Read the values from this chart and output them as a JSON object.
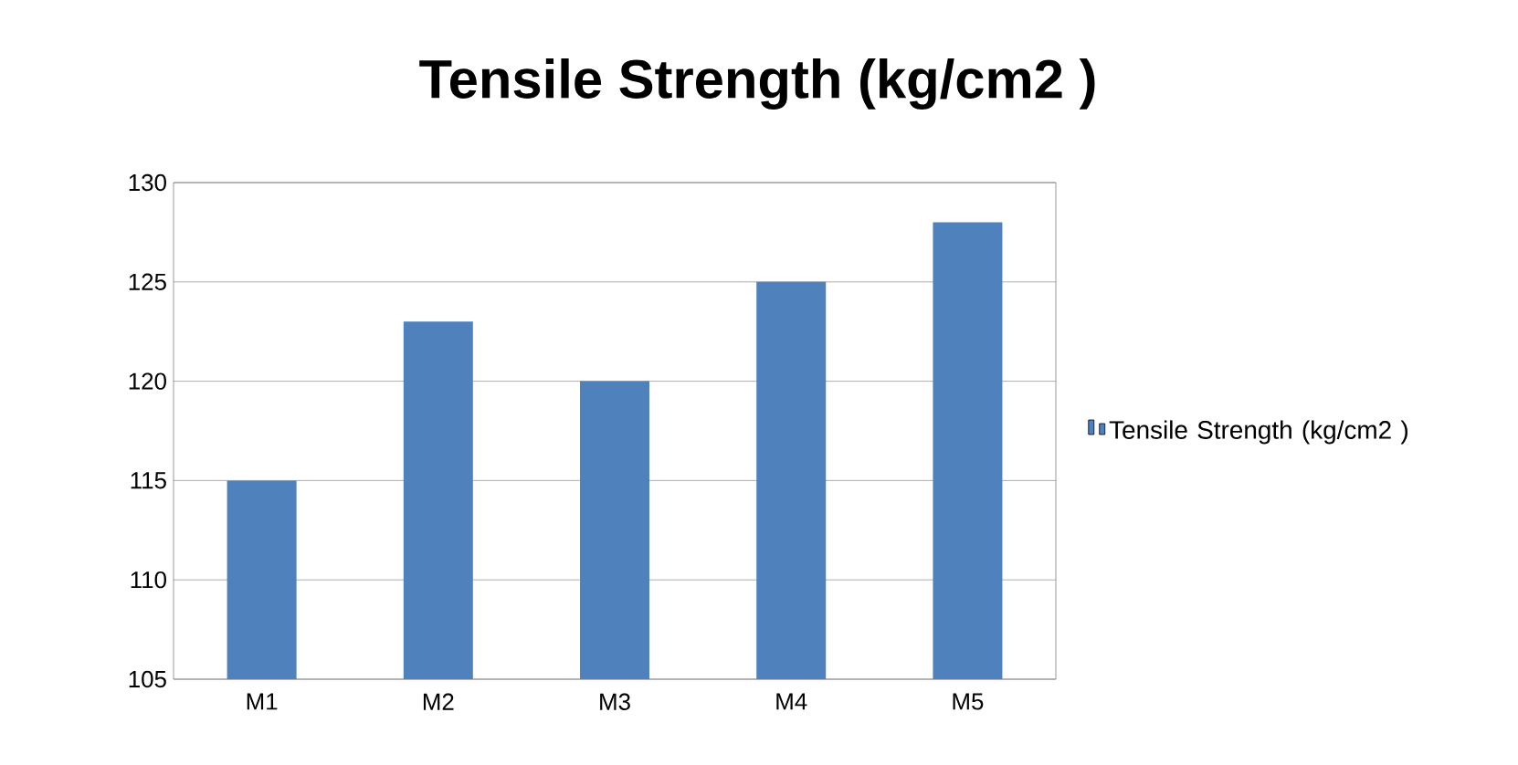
{
  "chart_data": {
    "type": "bar",
    "title": "Tensile Strength (kg/cm2 )",
    "categories": [
      "M1",
      "M2",
      "M3",
      "M4",
      "M5"
    ],
    "series": [
      {
        "name": "Tensile Strength (kg/cm2 )",
        "color": "#4f81bd",
        "values": [
          115,
          123,
          120,
          125,
          128
        ]
      }
    ],
    "ylim": [
      105,
      130
    ],
    "yticks": [
      105,
      110,
      115,
      120,
      125,
      130
    ],
    "grid": "y",
    "legend": "right"
  }
}
